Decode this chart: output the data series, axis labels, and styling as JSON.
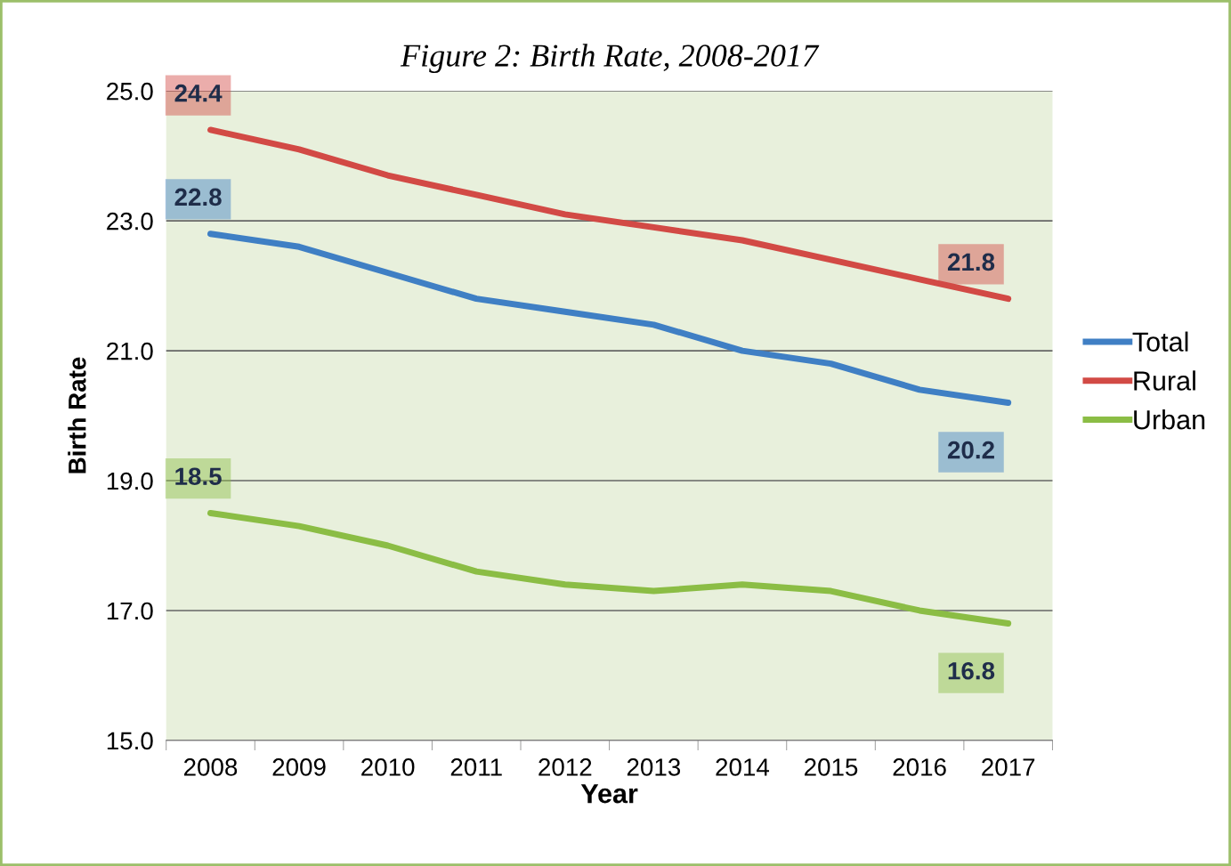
{
  "chart_data": {
    "type": "line",
    "title": "Figure 2: Birth Rate, 2008-2017",
    "xlabel": "Year",
    "ylabel": "Birth Rate",
    "categories": [
      "2008",
      "2009",
      "2010",
      "2011",
      "2012",
      "2013",
      "2014",
      "2015",
      "2016",
      "2017"
    ],
    "series": [
      {
        "name": "Total",
        "color": "#3f7fc4",
        "values": [
          22.8,
          22.6,
          22.2,
          21.8,
          21.6,
          21.4,
          21.0,
          20.8,
          20.4,
          20.2
        ],
        "value_labels": [
          "22.8",
          null,
          null,
          null,
          null,
          null,
          null,
          null,
          null,
          "20.2"
        ]
      },
      {
        "name": "Rural",
        "color": "#d24a45",
        "values": [
          24.4,
          24.1,
          23.7,
          23.4,
          23.1,
          22.9,
          22.7,
          22.4,
          22.1,
          21.8
        ],
        "value_labels": [
          "24.4",
          null,
          null,
          null,
          null,
          null,
          null,
          null,
          null,
          "21.8"
        ]
      },
      {
        "name": "Urban",
        "color": "#8bbd45",
        "values": [
          18.5,
          18.3,
          18.0,
          17.6,
          17.4,
          17.3,
          17.4,
          17.3,
          17.0,
          16.8
        ],
        "value_labels": [
          "18.5",
          null,
          null,
          null,
          null,
          null,
          null,
          null,
          null,
          "16.8"
        ]
      }
    ],
    "ylim": [
      15,
      25
    ],
    "yticks": [
      {
        "value": 15,
        "label": "15.0"
      },
      {
        "value": 17,
        "label": "17.0"
      },
      {
        "value": 19,
        "label": "19.0"
      },
      {
        "value": 21,
        "label": "21.0"
      },
      {
        "value": 23,
        "label": "23.0"
      },
      {
        "value": 25,
        "label": "25.0"
      }
    ],
    "grid": "y",
    "legend": "right",
    "marker": "none",
    "line_style": "solid"
  }
}
